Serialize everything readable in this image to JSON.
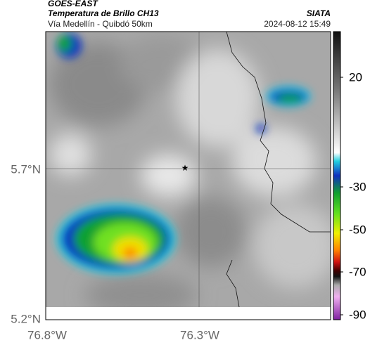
{
  "header": {
    "source": "GOES-EAST",
    "title": "Temperatura de Brillo CH13",
    "subtitle": "Vía Medellín - Quibdó 50km",
    "org": "SIATA",
    "datetime": "2024-08-12 15:49"
  },
  "axes": {
    "lat_labels": [
      "5.7°N",
      "5.2°N"
    ],
    "lon_labels": [
      "76.8°W",
      "76.3°W"
    ]
  },
  "colorbar": {
    "tick_labels": [
      "20",
      "-30",
      "-50",
      "-70",
      "-90"
    ]
  }
}
